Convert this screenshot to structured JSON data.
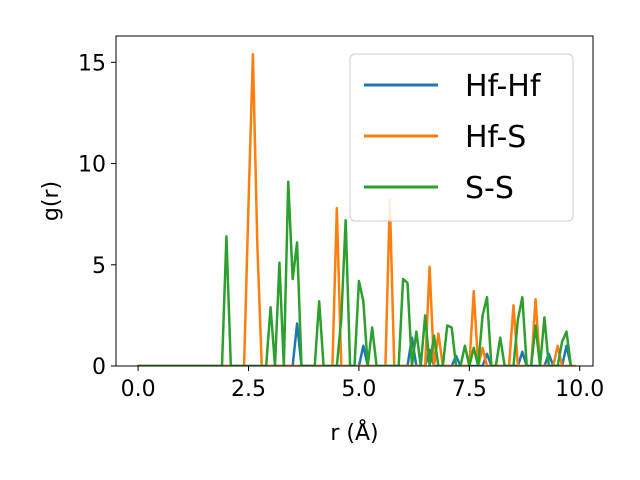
{
  "chart_data": {
    "type": "line",
    "title": "",
    "xlabel": "r (Å)",
    "ylabel": "g(r)",
    "xlim": [
      -0.5,
      10.3
    ],
    "ylim": [
      0,
      16.3
    ],
    "xticks": [
      0.0,
      2.5,
      5.0,
      7.5,
      10.0
    ],
    "xtick_labels": [
      "0.0",
      "2.5",
      "5.0",
      "7.5",
      "10.0"
    ],
    "yticks": [
      0,
      5,
      10,
      15
    ],
    "ytick_labels": [
      "0",
      "5",
      "10",
      "15"
    ],
    "grid": false,
    "legend": {
      "position": "top-right"
    },
    "series": [
      {
        "name": "Hf-Hf",
        "color": "#1f77b4",
        "x": [
          0.0,
          3.5,
          3.6,
          3.7,
          5.0,
          5.1,
          5.2,
          6.1,
          6.2,
          6.3,
          6.5,
          6.6,
          6.7,
          7.1,
          7.2,
          7.3,
          7.8,
          7.9,
          8.0,
          8.6,
          8.7,
          8.8,
          9.2,
          9.3,
          9.4,
          9.6,
          9.7,
          9.8
        ],
        "y": [
          0.0,
          0.0,
          2.1,
          0.0,
          0.0,
          1.0,
          0.0,
          0.0,
          1.4,
          0.0,
          0.0,
          0.8,
          0.0,
          0.0,
          0.5,
          0.0,
          0.0,
          0.6,
          0.0,
          0.0,
          0.7,
          0.0,
          0.0,
          0.6,
          0.0,
          0.0,
          1.0,
          0.0
        ]
      },
      {
        "name": "Hf-S",
        "color": "#ff7f0e",
        "x": [
          0.0,
          2.4,
          2.5,
          2.6,
          2.7,
          2.8,
          4.4,
          4.5,
          4.6,
          5.6,
          5.7,
          5.8,
          5.9,
          6.5,
          6.6,
          6.7,
          6.8,
          6.9,
          7.0,
          7.5,
          7.6,
          7.7,
          7.8,
          7.9,
          8.0,
          8.4,
          8.5,
          8.6,
          8.9,
          9.0,
          9.1,
          9.4,
          9.5,
          9.6,
          9.9
        ],
        "y": [
          0.0,
          0.0,
          8.0,
          15.4,
          6.0,
          0.0,
          0.0,
          7.8,
          0.0,
          0.0,
          8.2,
          0.0,
          0.0,
          0.0,
          4.9,
          0.0,
          1.6,
          0.0,
          0.0,
          0.0,
          3.7,
          0.0,
          0.9,
          0.0,
          0.0,
          0.0,
          3.0,
          0.0,
          0.0,
          3.3,
          0.0,
          0.0,
          1.0,
          0.0,
          0.0
        ]
      },
      {
        "name": "S-S",
        "color": "#2ca02c",
        "x": [
          0.0,
          1.9,
          2.0,
          2.1,
          2.9,
          3.0,
          3.1,
          3.2,
          3.3,
          3.4,
          3.5,
          3.6,
          3.7,
          4.0,
          4.1,
          4.2,
          4.5,
          4.6,
          4.7,
          4.8,
          4.9,
          5.0,
          5.1,
          5.2,
          5.3,
          5.4,
          5.5,
          5.9,
          6.0,
          6.1,
          6.2,
          6.3,
          6.4,
          6.5,
          6.6,
          6.7,
          6.8,
          6.9,
          7.0,
          7.1,
          7.2,
          7.3,
          7.4,
          7.5,
          7.6,
          7.7,
          7.8,
          7.9,
          8.0,
          8.1,
          8.2,
          8.3,
          8.4,
          8.5,
          8.6,
          8.7,
          8.8,
          8.9,
          9.0,
          9.1,
          9.2,
          9.3,
          9.4,
          9.5,
          9.6,
          9.7,
          9.8
        ],
        "y": [
          0.0,
          0.0,
          6.4,
          0.0,
          0.0,
          2.9,
          0.0,
          5.1,
          0.0,
          9.1,
          4.3,
          6.1,
          0.0,
          0.0,
          3.2,
          0.0,
          0.0,
          2.3,
          7.2,
          0.0,
          0.0,
          4.2,
          3.2,
          0.0,
          1.9,
          0.0,
          0.0,
          0.0,
          4.3,
          4.1,
          0.0,
          1.7,
          0.0,
          2.5,
          0.0,
          1.5,
          0.0,
          0.0,
          2.0,
          1.9,
          0.0,
          0.0,
          1.0,
          0.0,
          0.9,
          0.0,
          2.5,
          3.4,
          0.0,
          0.0,
          1.4,
          0.0,
          0.0,
          0.0,
          2.3,
          3.4,
          0.0,
          0.0,
          2.0,
          0.0,
          2.4,
          0.0,
          0.0,
          0.0,
          1.2,
          1.7,
          0.0
        ]
      }
    ]
  }
}
